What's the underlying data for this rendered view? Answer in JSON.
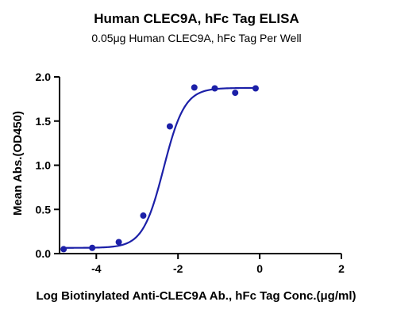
{
  "chart_data": {
    "type": "scatter",
    "title": "Human CLEC9A, hFc Tag ELISA",
    "subtitle": "0.05μg Human CLEC9A, hFc Tag Per Well",
    "xlabel": "Log Biotinylated Anti-CLEC9A Ab., hFc Tag Conc.(μg/ml)",
    "ylabel": "Mean Abs.(OD450)",
    "xlim": [
      -4.9,
      2
    ],
    "ylim": [
      0,
      2.0
    ],
    "x_ticks": [
      -4,
      -2,
      0,
      2
    ],
    "x_tick_labels": [
      "-4",
      "-2",
      "0",
      "2"
    ],
    "y_ticks": [
      0.0,
      0.5,
      1.0,
      1.5,
      2.0
    ],
    "y_tick_labels": [
      "0.0",
      "0.5",
      "1.0",
      "1.5",
      "2.0"
    ],
    "grid": false,
    "legend": "none",
    "point_color": "#1c20a8",
    "curve_color": "#1c20a8",
    "series": [
      {
        "x": [
          -4.8,
          -4.1,
          -3.45,
          -2.85,
          -2.2,
          -1.6,
          -1.1,
          -0.6,
          -0.1
        ],
        "y": [
          0.05,
          0.065,
          0.13,
          0.43,
          1.44,
          1.88,
          1.87,
          1.82,
          1.87
        ]
      }
    ],
    "fit": {
      "model": "4PL",
      "bottom": 0.065,
      "top": 1.875,
      "logEC50": -2.35,
      "hill": 1.7,
      "x_range": [
        -4.8,
        -0.1
      ]
    }
  }
}
